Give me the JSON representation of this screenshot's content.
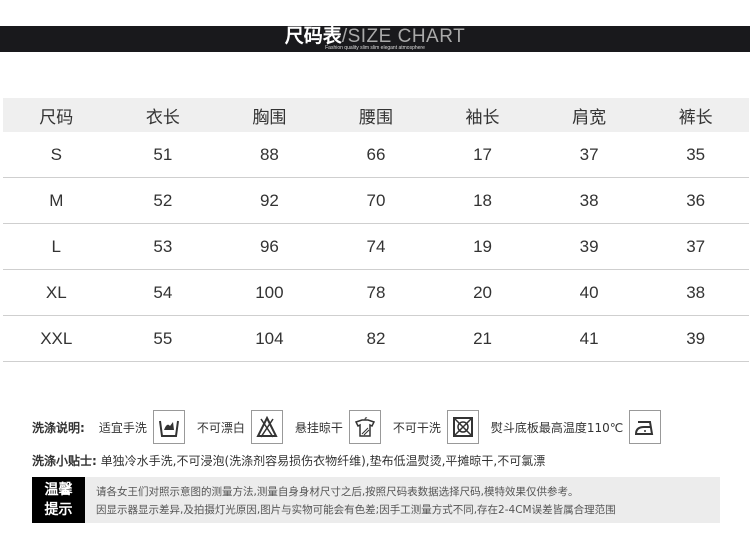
{
  "banner": {
    "title_cn": "尺码表",
    "title_en": "/SIZE CHART",
    "subtitle": "Fashion  quality slim slim elegant atmosphere"
  },
  "table": {
    "headers": [
      "尺码",
      "衣长",
      "胸围",
      "腰围",
      "袖长",
      "肩宽",
      "裤长"
    ],
    "rows": [
      [
        "S",
        "51",
        "88",
        "66",
        "17",
        "37",
        "35"
      ],
      [
        "M",
        "52",
        "92",
        "70",
        "18",
        "38",
        "36"
      ],
      [
        "L",
        "53",
        "96",
        "74",
        "19",
        "39",
        "37"
      ],
      [
        "XL",
        "54",
        "100",
        "78",
        "20",
        "40",
        "38"
      ],
      [
        "XXL",
        "55",
        "104",
        "82",
        "21",
        "41",
        "39"
      ]
    ]
  },
  "care": {
    "label": "洗涤说明:",
    "items": [
      {
        "text": "适宜手洗",
        "icon": "hand-wash-icon"
      },
      {
        "text": "不可漂白",
        "icon": "no-bleach-icon"
      },
      {
        "text": "悬挂晾干",
        "icon": "hang-dry-icon"
      },
      {
        "text": "不可干洗",
        "icon": "no-dry-clean-icon"
      },
      {
        "text": "熨斗底板最高温度110℃",
        "icon": "iron-icon"
      }
    ]
  },
  "tips": {
    "label": "洗涤小贴士:",
    "text": " 单独冷水手洗,不可浸泡(洗涤剂容易损伤衣物纤维),垫布低温熨烫,平摊晾干,不可氯漂"
  },
  "warm": {
    "label_1": "温馨",
    "label_2": "提示",
    "line_1": "请各女王们对照示意图的测量方法,测量自身身材尺寸之后,按照尺码表数据选择尺码,模特效果仅供参考。",
    "line_2": "因显示器显示差异,及拍摄灯光原因,图片与实物可能会有色差;因手工测量方式不同,存在2-4CM误差皆属合理范围"
  }
}
